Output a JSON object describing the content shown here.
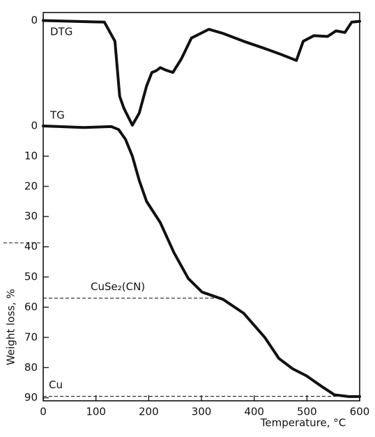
{
  "chart_data": {
    "type": "line",
    "xlabel": "Temperature, °C",
    "ylabel": "Weight loss, %",
    "xlim": [
      0,
      600
    ],
    "xticks": [
      0,
      100,
      200,
      300,
      400,
      500,
      600
    ],
    "ylim": [
      0,
      91
    ],
    "yticks": [
      0,
      10,
      20,
      30,
      40,
      50,
      60,
      70,
      80,
      90
    ],
    "y2lim": [
      1,
      -13.2
    ],
    "y2ticks": [
      0
    ],
    "series": [
      {
        "name": "TG",
        "color": "#111111",
        "x": [
          0,
          77,
          129,
          143,
          156,
          169,
          182,
          196,
          222,
          248,
          275,
          301,
          341,
          380,
          420,
          447,
          473,
          499,
          526,
          552,
          579,
          600
        ],
        "values": [
          0,
          0.5,
          0.2,
          1.2,
          4.4,
          10,
          18,
          25,
          32,
          42,
          50.5,
          55,
          57.4,
          62,
          70,
          77,
          80.4,
          82.7,
          86,
          89,
          89.6,
          89.6
        ]
      },
      {
        "name": "DTG",
        "color": "#111111",
        "axis": "y2",
        "x": [
          0,
          116,
          136,
          145,
          153,
          169,
          182,
          196,
          206,
          214,
          222,
          232,
          246,
          262,
          281,
          314,
          340,
          380,
          420,
          453,
          480,
          493,
          513,
          539,
          555,
          572,
          585,
          600
        ],
        "values": [
          0,
          -0.2,
          -2.6,
          -9.5,
          -11,
          -13.1,
          -11.6,
          -8.2,
          -6.5,
          -6.3,
          -5.9,
          -6.2,
          -6.5,
          -4.8,
          -2.2,
          -1.1,
          -1.6,
          -2.6,
          -3.5,
          -4.3,
          -5,
          -2.6,
          -1.9,
          -2,
          -1.3,
          -1.5,
          -0.2,
          -0.1
        ]
      }
    ],
    "annotations": [
      {
        "text": "CuSe₂(CN)",
        "value": 57,
        "x": [
          0,
          330
        ]
      },
      {
        "text": "Cu",
        "value": 89.5,
        "x": [
          0,
          600
        ]
      }
    ]
  }
}
